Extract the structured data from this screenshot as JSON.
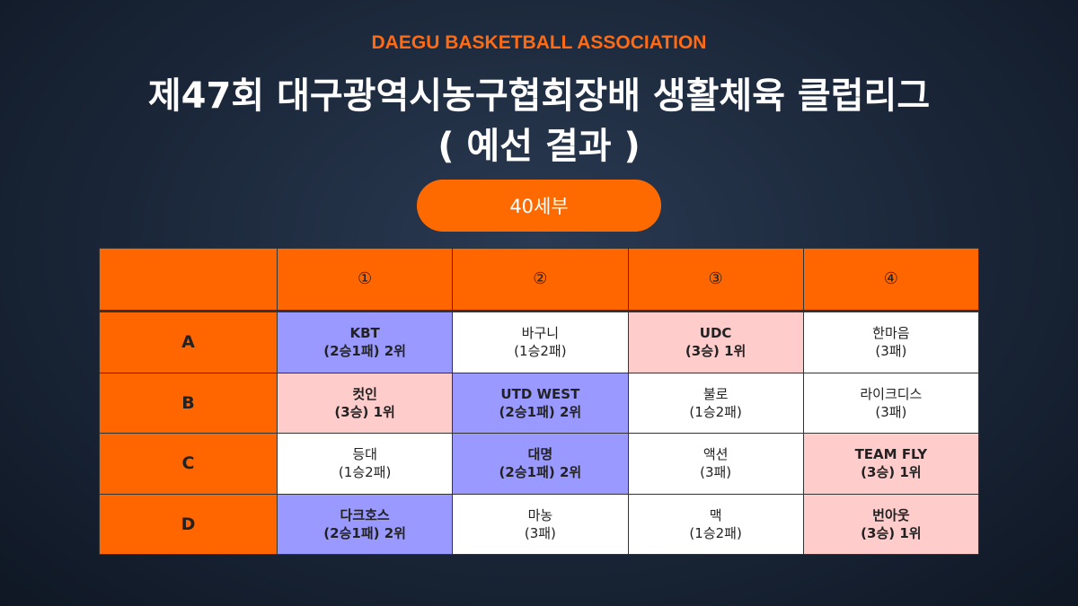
{
  "header": {
    "org": "DAEGU BASKETBALL ASSOCIATION",
    "title": "제47회 대구광역시농구협회장배 생활체육 클럽리그",
    "subtitle": "( 예선 결과 )"
  },
  "badge": "40세부",
  "table": {
    "columns": [
      "①",
      "②",
      "③",
      "④"
    ],
    "rows": [
      {
        "label": "A",
        "cells": [
          {
            "name": "KBT",
            "record": "(2승1패) 2위",
            "color": "#9999ff"
          },
          {
            "name": "바구니",
            "record": "(1승2패)",
            "color": "#ffffff"
          },
          {
            "name": "UDC",
            "record": "(3승) 1위",
            "color": "#ffcccc"
          },
          {
            "name": "한마음",
            "record": "(3패)",
            "color": "#ffffff"
          }
        ]
      },
      {
        "label": "B",
        "cells": [
          {
            "name": "컷인",
            "record": "(3승) 1위",
            "color": "#ffcccc"
          },
          {
            "name": "UTD WEST",
            "record": "(2승1패) 2위",
            "color": "#9999ff"
          },
          {
            "name": "불로",
            "record": "(1승2패)",
            "color": "#ffffff"
          },
          {
            "name": "라이크디스",
            "record": "(3패)",
            "color": "#ffffff"
          }
        ]
      },
      {
        "label": "C",
        "cells": [
          {
            "name": "등대",
            "record": "(1승2패)",
            "color": "#ffffff"
          },
          {
            "name": "대명",
            "record": "(2승1패) 2위",
            "color": "#9999ff"
          },
          {
            "name": "액션",
            "record": "(3패)",
            "color": "#ffffff"
          },
          {
            "name": "TEAM FLY",
            "record": "(3승) 1위",
            "color": "#ffcccc"
          }
        ]
      },
      {
        "label": "D",
        "cells": [
          {
            "name": "다크호스",
            "record": "(2승1패) 2위",
            "color": "#9999ff"
          },
          {
            "name": "마농",
            "record": "(3패)",
            "color": "#ffffff"
          },
          {
            "name": "맥",
            "record": "(1승2패)",
            "color": "#ffffff"
          },
          {
            "name": "번아웃",
            "record": "(3승) 1위",
            "color": "#ffcccc"
          }
        ]
      }
    ]
  }
}
